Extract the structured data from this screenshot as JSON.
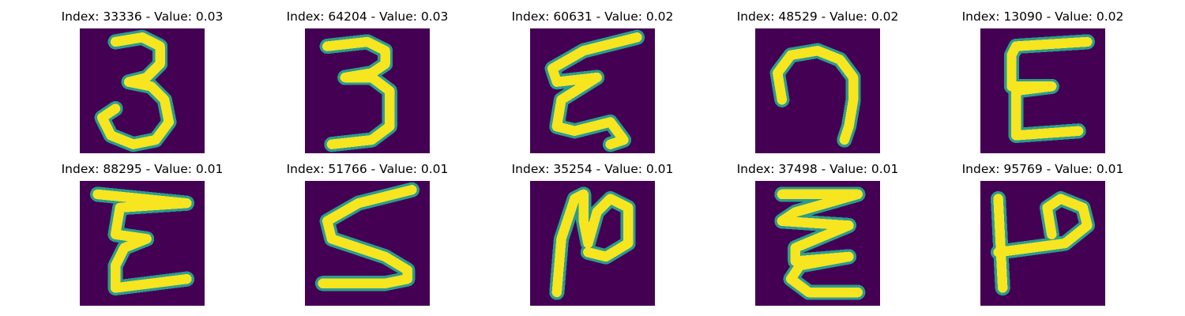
{
  "colors": {
    "background": "#440154",
    "stroke_outer": "#2a9d8f",
    "stroke_inner": "#f7e51f"
  },
  "panels": [
    {
      "title": "Index: 33336 - Value: 0.03",
      "index": 33336,
      "value": 0.03,
      "shape": "digit-3-open"
    },
    {
      "title": "Index: 64204 - Value: 0.03",
      "index": 64204,
      "value": 0.03,
      "shape": "digit-3-flat"
    },
    {
      "title": "Index: 60631 - Value: 0.02",
      "index": 60631,
      "value": 0.02,
      "shape": "zigzag-e"
    },
    {
      "title": "Index: 48529 - Value: 0.02",
      "index": 48529,
      "value": 0.02,
      "shape": "hook-g"
    },
    {
      "title": "Index: 13090 - Value: 0.02",
      "index": 13090,
      "value": 0.02,
      "shape": "letter-e"
    },
    {
      "title": "Index: 88295 - Value: 0.01",
      "index": 88295,
      "value": 0.01,
      "shape": "letter-e-wide"
    },
    {
      "title": "Index: 51766 - Value: 0.01",
      "index": 51766,
      "value": 0.01,
      "shape": "letter-s"
    },
    {
      "title": "Index: 35254 - Value: 0.01",
      "index": 35254,
      "value": 0.01,
      "shape": "letter-n"
    },
    {
      "title": "Index: 37498 - Value: 0.01",
      "index": 37498,
      "value": 0.01,
      "shape": "zigzag-z"
    },
    {
      "title": "Index: 95769 - Value: 0.01",
      "index": 95769,
      "value": 0.01,
      "shape": "rotated-p"
    }
  ]
}
